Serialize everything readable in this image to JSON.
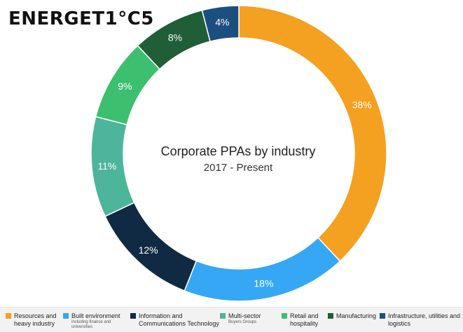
{
  "logo": "ENERGET1°C5",
  "chart_data": {
    "type": "pie",
    "title": "Corporate PPAs by industry",
    "subtitle": "2017 - Present",
    "donut": true,
    "legend_position": "bottom",
    "slices": [
      {
        "label": "Resources and heavy industry",
        "value": 38,
        "display": "38%",
        "color": "#f4a020"
      },
      {
        "label": "Built environment",
        "value": 18,
        "display": "18%",
        "color": "#36a7f5"
      },
      {
        "label": "Information and Communications Technology",
        "value": 12,
        "display": "12%",
        "color": "#102a43"
      },
      {
        "label": "Multi-sector",
        "value": 11,
        "display": "11%",
        "color": "#4db59a"
      },
      {
        "label": "Retail and hospitality",
        "value": 9,
        "display": "9%",
        "color": "#3cc06f"
      },
      {
        "label": "Manufacturing",
        "value": 8,
        "display": "8%",
        "color": "#1f5e36"
      },
      {
        "label": "Infrastructure, utilities and logistics",
        "value": 4,
        "display": "4%",
        "color": "#1b4f80"
      }
    ]
  },
  "legend": [
    {
      "line1": "Resources and",
      "line2": "heavy industry",
      "sub": ""
    },
    {
      "line1": "Built environment",
      "line2": "",
      "sub": "including finance and universities"
    },
    {
      "line1": "Information and",
      "line2": "Communications Technology",
      "sub": ""
    },
    {
      "line1": "Multi-sector",
      "line2": "",
      "sub": "Buyers Groups"
    },
    {
      "line1": "Retail and",
      "line2": "hospitality",
      "sub": ""
    },
    {
      "line1": "Manufacturing",
      "line2": "",
      "sub": ""
    },
    {
      "line1": "Infrastructure, utilities and",
      "line2": "logistics",
      "sub": ""
    }
  ]
}
